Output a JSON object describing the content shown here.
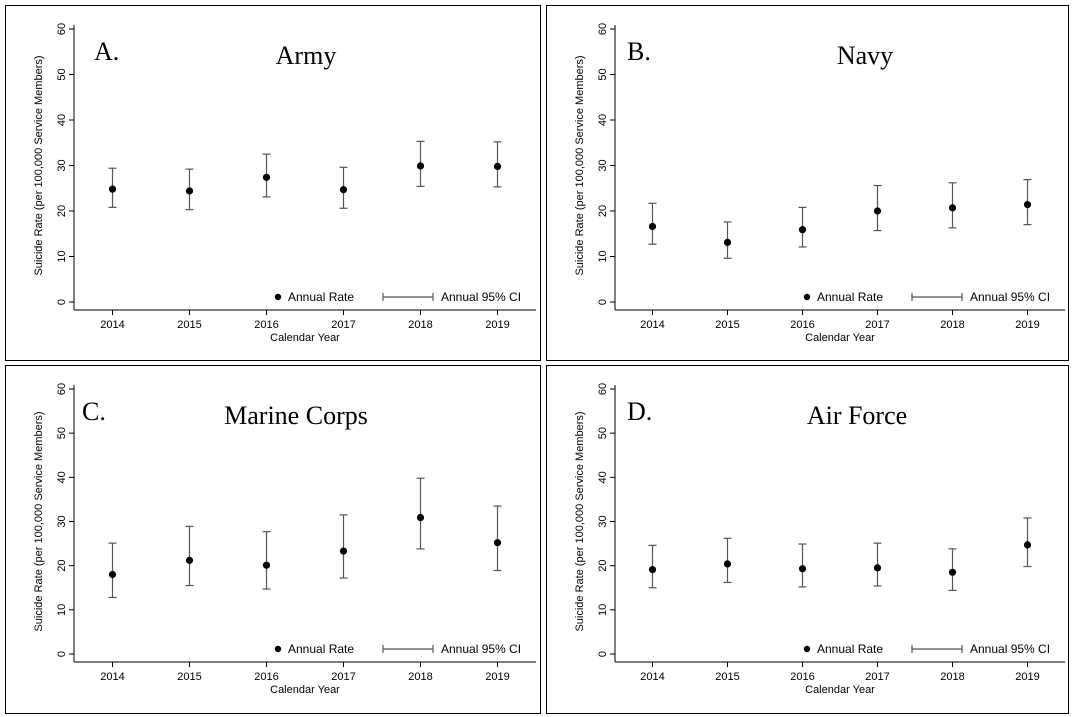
{
  "chart_data": [
    {
      "type": "scatter",
      "letter": "A.",
      "title": "Army",
      "xlabel": "Calendar Year",
      "ylabel": "Suicide Rate (per 100,000 Service Members)",
      "ylim": [
        0,
        60
      ],
      "yticks": [
        "0",
        "10",
        "20",
        "30",
        "40",
        "50",
        "60"
      ],
      "categories": [
        "2014",
        "2015",
        "2016",
        "2017",
        "2018",
        "2019"
      ],
      "values": [
        24.8,
        24.4,
        27.4,
        24.7,
        29.9,
        29.8
      ],
      "ci_low": [
        20.8,
        20.3,
        23.1,
        20.6,
        25.4,
        25.3
      ],
      "ci_high": [
        29.4,
        29.2,
        32.5,
        29.6,
        35.3,
        35.2
      ],
      "legend": {
        "point": "Annual Rate",
        "ci": "Annual 95% CI"
      }
    },
    {
      "type": "scatter",
      "letter": "B.",
      "title": "Navy",
      "xlabel": "Calendar Year",
      "ylabel": "Suicide Rate (per 100,000 Service Members)",
      "ylim": [
        0,
        60
      ],
      "yticks": [
        "0",
        "10",
        "20",
        "30",
        "40",
        "50",
        "60"
      ],
      "categories": [
        "2014",
        "2015",
        "2016",
        "2017",
        "2018",
        "2019"
      ],
      "values": [
        16.6,
        13.1,
        15.9,
        20.0,
        20.7,
        21.4
      ],
      "ci_low": [
        12.7,
        9.6,
        12.1,
        15.7,
        16.3,
        17.0
      ],
      "ci_high": [
        21.7,
        17.6,
        20.8,
        25.6,
        26.2,
        26.9
      ],
      "legend": {
        "point": "Annual Rate",
        "ci": "Annual 95% CI"
      }
    },
    {
      "type": "scatter",
      "letter": "C.",
      "title": "Marine Corps",
      "xlabel": "Calendar Year",
      "ylabel": "Suicide Rate (per 100,000 Service Members)",
      "ylim": [
        0,
        60
      ],
      "yticks": [
        "0",
        "10",
        "20",
        "30",
        "40",
        "50",
        "60"
      ],
      "categories": [
        "2014",
        "2015",
        "2016",
        "2017",
        "2018",
        "2019"
      ],
      "values": [
        18.0,
        21.2,
        20.1,
        23.3,
        30.9,
        25.2
      ],
      "ci_low": [
        12.8,
        15.5,
        14.7,
        17.2,
        23.8,
        18.9
      ],
      "ci_high": [
        25.1,
        28.9,
        27.7,
        31.5,
        39.8,
        33.5
      ],
      "legend": {
        "point": "Annual Rate",
        "ci": "Annual 95% CI"
      }
    },
    {
      "type": "scatter",
      "letter": "D.",
      "title": "Air Force",
      "xlabel": "Calendar Year",
      "ylabel": "Suicide Rate (per 100,000 Service Members)",
      "ylim": [
        0,
        60
      ],
      "yticks": [
        "0",
        "10",
        "20",
        "30",
        "40",
        "50",
        "60"
      ],
      "categories": [
        "2014",
        "2015",
        "2016",
        "2017",
        "2018",
        "2019"
      ],
      "values": [
        19.1,
        20.4,
        19.3,
        19.5,
        18.5,
        24.7
      ],
      "ci_low": [
        15.0,
        16.2,
        15.2,
        15.4,
        14.4,
        19.8
      ],
      "ci_high": [
        24.6,
        26.2,
        24.9,
        25.1,
        23.8,
        30.8
      ],
      "legend": {
        "point": "Annual Rate",
        "ci": "Annual 95% CI"
      }
    }
  ],
  "colors": {
    "point": "#000000",
    "ci": "#555555",
    "axis": "#000000"
  }
}
